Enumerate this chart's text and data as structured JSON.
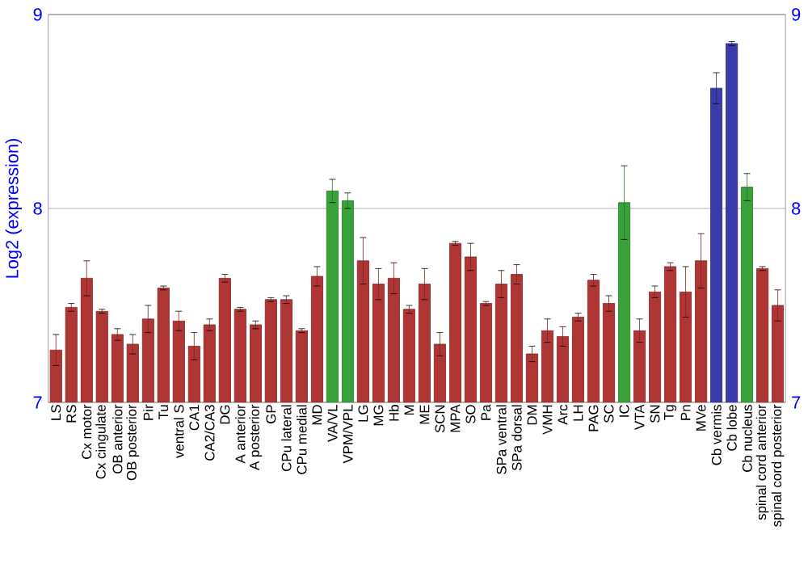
{
  "chart_data": {
    "type": "bar",
    "ylabel": "Log2 (expression)",
    "categories": [
      "LS",
      "RS",
      "Cx motor",
      "Cx cingulate",
      "OB anterior",
      "OB posterior",
      "Pir",
      "Tu",
      "ventral S",
      "CA1",
      "CA2/CA3",
      "DG",
      "A anterior",
      "A posterior",
      "GP",
      "CPu lateral",
      "CPu medial",
      "MD",
      "VA/VL",
      "VPM/VPL",
      "LG",
      "MG",
      "Hb",
      "M",
      "ME",
      "SCN",
      "MPA",
      "SO",
      "Pa",
      "SPa ventral",
      "SPa dorsal",
      "DM",
      "VMH",
      "Arc",
      "LH",
      "PAG",
      "SC",
      "IC",
      "VTA",
      "SN",
      "Tg",
      "Pn",
      "MVe",
      "Cb vermis",
      "Cb lobe",
      "Cb nucleus",
      "spinal cord anterior",
      "spinal cord posterior"
    ],
    "values": [
      7.27,
      7.49,
      7.64,
      7.47,
      7.35,
      7.3,
      7.43,
      7.59,
      7.42,
      7.29,
      7.4,
      7.64,
      7.48,
      7.4,
      7.53,
      7.53,
      7.37,
      7.65,
      8.09,
      8.04,
      7.73,
      7.61,
      7.64,
      7.48,
      7.61,
      7.3,
      7.82,
      7.75,
      7.51,
      7.61,
      7.66,
      7.25,
      7.37,
      7.34,
      7.44,
      7.63,
      7.51,
      8.03,
      7.37,
      7.57,
      7.7,
      7.57,
      7.73,
      8.62,
      8.85,
      8.11,
      7.69,
      7.5
    ],
    "errors": [
      0.08,
      0.02,
      0.09,
      0.01,
      0.03,
      0.05,
      0.07,
      0.01,
      0.05,
      0.07,
      0.03,
      0.02,
      0.01,
      0.02,
      0.01,
      0.02,
      0.01,
      0.05,
      0.06,
      0.04,
      0.12,
      0.08,
      0.08,
      0.02,
      0.08,
      0.06,
      0.01,
      0.07,
      0.01,
      0.07,
      0.05,
      0.04,
      0.06,
      0.05,
      0.02,
      0.03,
      0.04,
      0.19,
      0.06,
      0.03,
      0.02,
      0.13,
      0.14,
      0.08,
      0.01,
      0.07,
      0.01,
      0.08
    ],
    "colors": [
      "#b03535",
      "#b03535",
      "#b03535",
      "#b03535",
      "#b03535",
      "#b03535",
      "#b03535",
      "#b03535",
      "#b03535",
      "#b03535",
      "#b03535",
      "#b03535",
      "#b03535",
      "#b03535",
      "#b03535",
      "#b03535",
      "#b03535",
      "#b03535",
      "#3aa23a",
      "#3aa23a",
      "#b03535",
      "#b03535",
      "#b03535",
      "#b03535",
      "#b03535",
      "#b03535",
      "#b03535",
      "#b03535",
      "#b03535",
      "#b03535",
      "#b03535",
      "#b03535",
      "#b03535",
      "#b03535",
      "#b03535",
      "#b03535",
      "#b03535",
      "#3aa23a",
      "#b03535",
      "#b03535",
      "#b03535",
      "#b03535",
      "#b03535",
      "#3a3aaa",
      "#3a3aaa",
      "#3aa23a",
      "#b03535",
      "#b03535"
    ],
    "ylim": [
      7,
      9
    ],
    "yticks": [
      7,
      8,
      9
    ],
    "y2lim": [
      7,
      9
    ],
    "y2ticks": [
      7,
      8,
      9
    ],
    "grid": "y"
  }
}
